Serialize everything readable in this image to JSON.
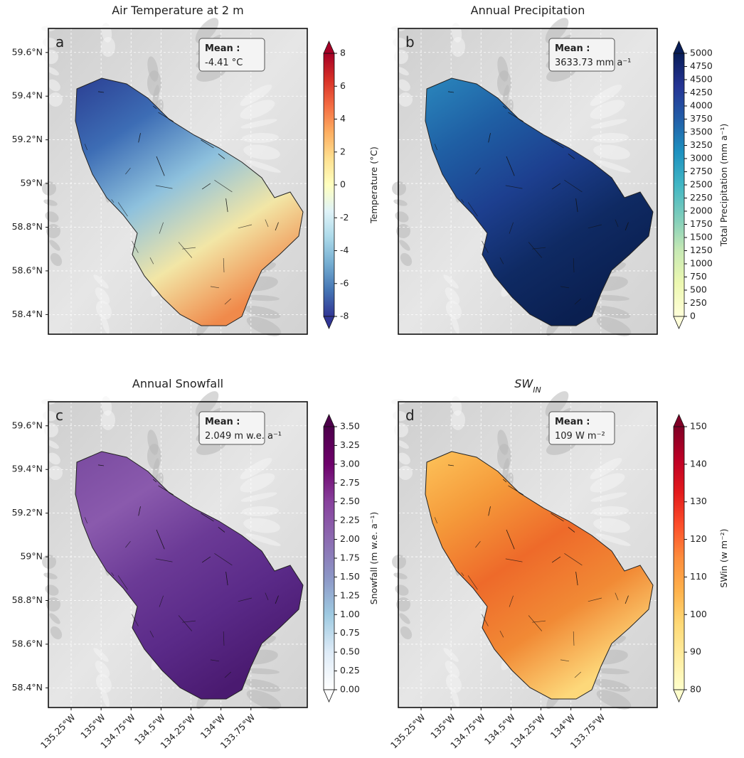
{
  "lat_ticks": [
    {
      "value": 59.6,
      "label": "59.6°N"
    },
    {
      "value": 59.4,
      "label": "59.4°N"
    },
    {
      "value": 59.2,
      "label": "59.2°N"
    },
    {
      "value": 59.0,
      "label": "59°N"
    },
    {
      "value": 58.8,
      "label": "58.8°N"
    },
    {
      "value": 58.6,
      "label": "58.6°N"
    },
    {
      "value": 58.4,
      "label": "58.4°N"
    }
  ],
  "lat_lim": [
    59.71,
    58.31
  ],
  "lon_ticks": [
    {
      "value": -135.25,
      "label": "135.25°W"
    },
    {
      "value": -135.0,
      "label": "135°W"
    },
    {
      "value": -134.75,
      "label": "134.75°W"
    },
    {
      "value": -134.5,
      "label": "134.5°W"
    },
    {
      "value": -134.25,
      "label": "134.25°W"
    },
    {
      "value": -134.0,
      "label": "134°W"
    },
    {
      "value": -133.75,
      "label": "133.75°W"
    }
  ],
  "lon_lim": [
    -135.44,
    -133.28
  ],
  "panels": [
    {
      "letter": "a",
      "title": "Air Temperature at 2 m",
      "mean_label": "Mean :",
      "mean_value": "-4.41 °C",
      "fill_colors": [
        "#2b3f93",
        "#3d6db5",
        "#8ec1dd",
        "#f2e6a6",
        "#f08a4b"
      ],
      "colorbar": {
        "label": "Temperature (°C)",
        "lim": [
          -8,
          8
        ],
        "ticks": [
          -8,
          -6,
          -4,
          -2,
          0,
          2,
          4,
          6,
          8
        ],
        "colors": [
          "#313695",
          "#4575b4",
          "#74add1",
          "#abd9e9",
          "#e0f3f8",
          "#ffffbf",
          "#fee090",
          "#fdae61",
          "#f46d43",
          "#d73027",
          "#a50026"
        ]
      }
    },
    {
      "letter": "b",
      "title": "Annual Precipitation",
      "mean_label": "Mean :",
      "mean_value": "3633.73 mm a⁻¹",
      "fill_colors": [
        "#2a87bd",
        "#1f5fa4",
        "#1d3f8f",
        "#0f2a63",
        "#0a1f50"
      ],
      "colorbar": {
        "label": "Total Precipitation (mm a⁻¹)",
        "lim": [
          0,
          5000
        ],
        "ticks": [
          0,
          250,
          500,
          750,
          1000,
          1250,
          1500,
          1750,
          2000,
          2250,
          2500,
          2750,
          3000,
          3250,
          3500,
          3750,
          4000,
          4250,
          4500,
          4750,
          5000
        ],
        "colors": [
          "#ffffd9",
          "#edf8b1",
          "#c7e9b4",
          "#7fcdbb",
          "#41b6c4",
          "#1d91c0",
          "#225ea8",
          "#253494",
          "#081d58"
        ]
      }
    },
    {
      "letter": "c",
      "title": "Annual Snowfall",
      "mean_label": "Mean :",
      "mean_value": "2.049 m w.e. a⁻¹",
      "fill_colors": [
        "#7a4ba0",
        "#8a5aad",
        "#6b3a96",
        "#5a2a88",
        "#4a1a70"
      ],
      "colorbar": {
        "label": "Snowfall (m w.e. a⁻¹)",
        "lim": [
          0,
          3.5
        ],
        "ticks": [
          {
            "value": 0,
            "label": "0.00"
          },
          {
            "value": 0.25,
            "label": "0.25"
          },
          {
            "value": 0.5,
            "label": "0.50"
          },
          {
            "value": 0.75,
            "label": "0.75"
          },
          {
            "value": 1.0,
            "label": "1.00"
          },
          {
            "value": 1.25,
            "label": "1.25"
          },
          {
            "value": 1.5,
            "label": "1.50"
          },
          {
            "value": 1.75,
            "label": "1.75"
          },
          {
            "value": 2.0,
            "label": "2.00"
          },
          {
            "value": 2.25,
            "label": "2.25"
          },
          {
            "value": 2.5,
            "label": "2.50"
          },
          {
            "value": 2.75,
            "label": "2.75"
          },
          {
            "value": 3.0,
            "label": "3.00"
          },
          {
            "value": 3.25,
            "label": "3.25"
          },
          {
            "value": 3.5,
            "label": "3.50"
          }
        ],
        "colors": [
          "#ffffff",
          "#deebf7",
          "#9ecae1",
          "#8c96c6",
          "#8c6bb1",
          "#88419d",
          "#6e016b",
          "#4d004b"
        ]
      }
    },
    {
      "letter": "d",
      "title": "SW",
      "title_subscript": "IN",
      "mean_label": "Mean :",
      "mean_value": "109 W m⁻²",
      "fill_colors": [
        "#fdc35a",
        "#f59a3a",
        "#ee6a2a",
        "#f18a35",
        "#fdd87a"
      ],
      "colorbar": {
        "label": "SWin (w m⁻²)",
        "lim": [
          80,
          150
        ],
        "ticks": [
          80,
          90,
          100,
          110,
          120,
          130,
          140,
          150
        ],
        "colors": [
          "#ffffcc",
          "#ffeda0",
          "#fed976",
          "#feb24c",
          "#fd8d3c",
          "#fc4e2a",
          "#e31a1c",
          "#bd0026",
          "#800026"
        ]
      }
    }
  ]
}
